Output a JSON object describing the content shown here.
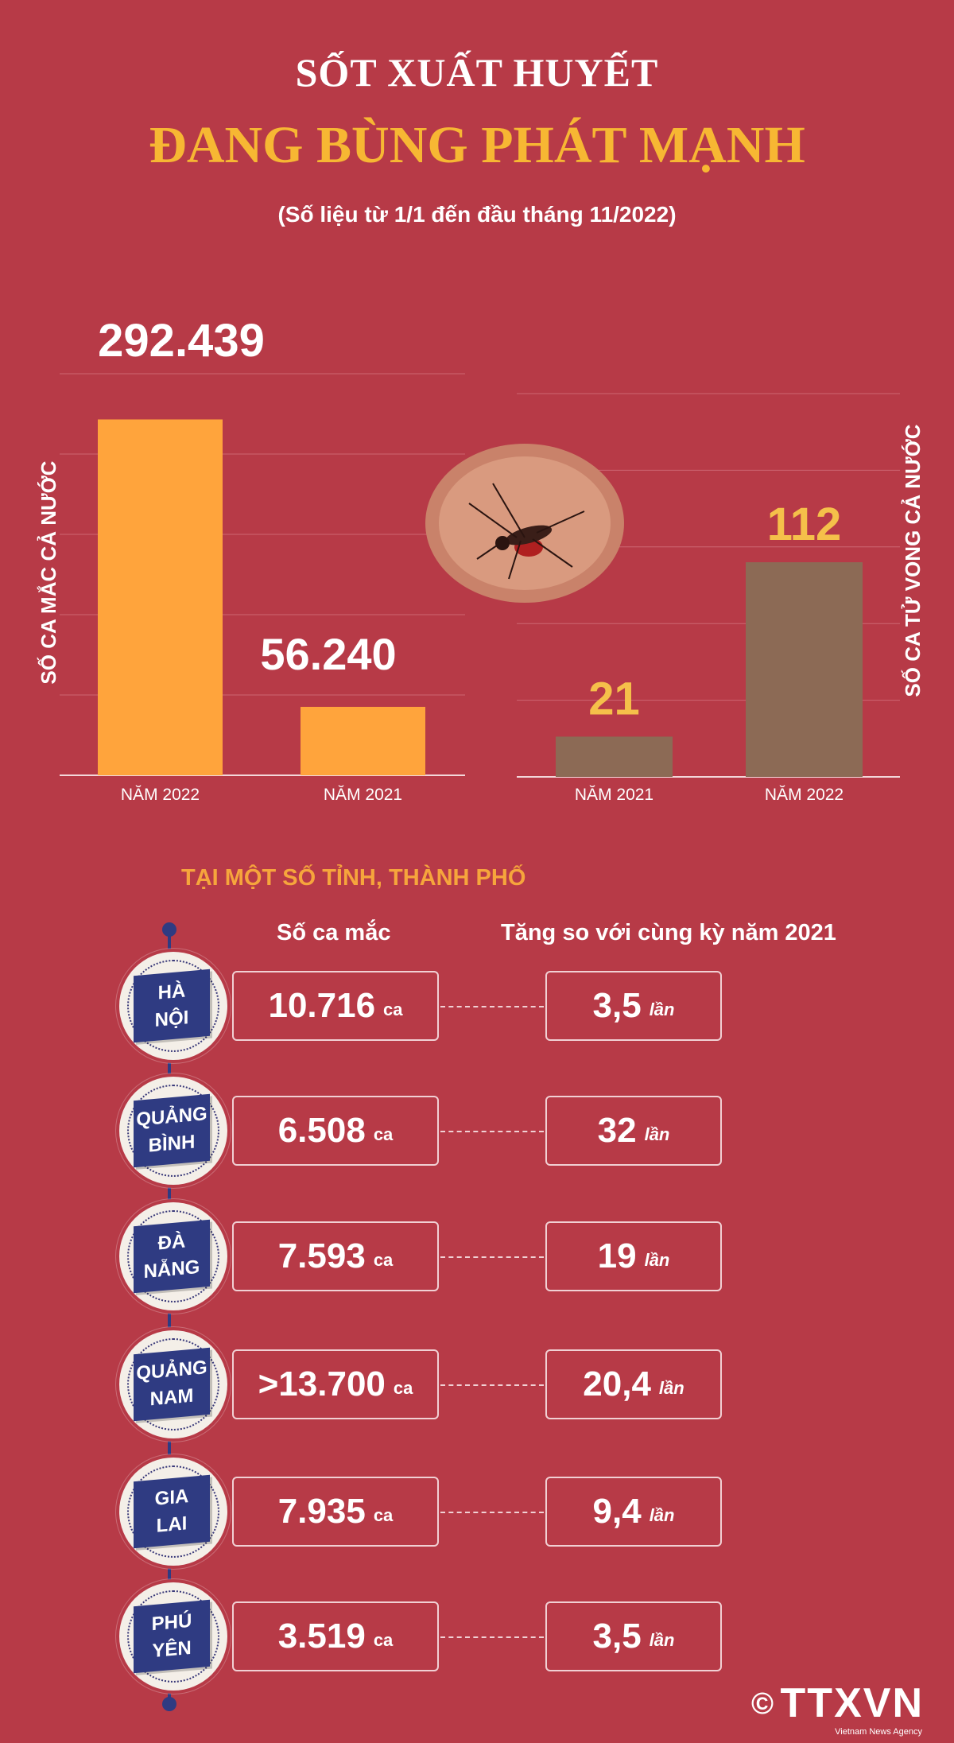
{
  "header": {
    "title_line1": "SỐT XUẤT HUYẾT",
    "title_line2": "ĐANG BÙNG PHÁT MẠNH",
    "subtitle": "(Số liệu từ 1/1 đến đầu tháng 11/2022)"
  },
  "colors": {
    "background": "#b73a47",
    "cases_bar": "#ffa43c",
    "deaths_bar": "#8c6a55",
    "title_accent": "#f7b733",
    "badge": "#2f3b82"
  },
  "chart_data": [
    {
      "type": "bar",
      "ylabel": "SỐ CA MẮC CẢ NƯỚC",
      "categories": [
        "NĂM 2022",
        "NĂM 2021"
      ],
      "values": [
        292439,
        56240
      ],
      "value_labels": [
        "292.439",
        "56.240"
      ],
      "ylim": [
        0,
        330000
      ],
      "grid": true
    },
    {
      "type": "bar",
      "ylabel": "SỐ CA TỬ VONG CẢ NƯỚC",
      "categories": [
        "NĂM 2021",
        "NĂM 2022"
      ],
      "values": [
        21,
        112
      ],
      "value_labels": [
        "21",
        "112"
      ],
      "ylim": [
        0,
        200
      ],
      "grid": true
    }
  ],
  "provinces_section": {
    "title": "TẠI MỘT SỐ TỈNH, THÀNH PHỐ",
    "col_cases": "Số ca mắc",
    "col_increase": "Tăng so với cùng kỳ năm 2021",
    "rows": [
      {
        "line1": "HÀ",
        "line2": "NỘI",
        "cases": "10.716",
        "cases_unit": "ca",
        "increase": "3,5",
        "increase_unit": "lần"
      },
      {
        "line1": "QUẢNG",
        "line2": "BÌNH",
        "cases": "6.508",
        "cases_unit": "ca",
        "increase": "32",
        "increase_unit": "lần"
      },
      {
        "line1": "ĐÀ",
        "line2": "NẴNG",
        "cases": "7.593",
        "cases_unit": "ca",
        "increase": "19",
        "increase_unit": "lần"
      },
      {
        "line1": "QUẢNG",
        "line2": "NAM",
        "cases": ">13.700",
        "cases_unit": "ca",
        "increase": "20,4",
        "increase_unit": "lần"
      },
      {
        "line1": "GIA",
        "line2": "LAI",
        "cases": "7.935",
        "cases_unit": "ca",
        "increase": "9,4",
        "increase_unit": "lần"
      },
      {
        "line1": "PHÚ",
        "line2": "YÊN",
        "cases": "3.519",
        "cases_unit": "ca",
        "increase": "3,5",
        "increase_unit": "lần"
      }
    ]
  },
  "footer": {
    "copyright": "©",
    "logo": "TTXVN",
    "logo_sub": "Vietnam News Agency"
  }
}
